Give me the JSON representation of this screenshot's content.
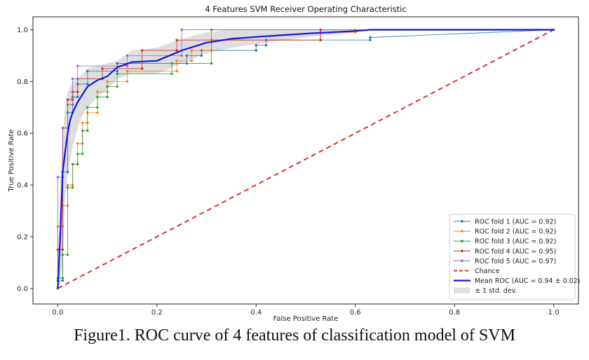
{
  "caption": "Figure1. ROC curve of 4 features of classification model of SVM",
  "chart_data": {
    "type": "line",
    "title": "4 Features SVM Receiver Operating Characteristic",
    "xlabel": "False Positive Rate",
    "ylabel": "True Positive Rate",
    "xlim": [
      -0.05,
      1.05
    ],
    "ylim": [
      -0.06,
      1.05
    ],
    "xticks": [
      0.0,
      0.2,
      0.4,
      0.6,
      0.8,
      1.0
    ],
    "yticks": [
      0.0,
      0.2,
      0.4,
      0.6,
      0.8,
      1.0
    ],
    "tick_labels_x": [
      "0.0",
      "0.2",
      "0.4",
      "0.6",
      "0.8",
      "1.0"
    ],
    "tick_labels_y": [
      "0.0",
      "0.2",
      "0.4",
      "0.6",
      "0.8",
      "1.0"
    ],
    "legend_position": "bottom-right",
    "series": [
      {
        "name": "ROC fold 1 (AUC = 0.92)",
        "color": "#1f77b4",
        "style": "line-dot",
        "x": [
          0,
          0,
          0.01,
          0.01,
          0.02,
          0.02,
          0.03,
          0.03,
          0.04,
          0.04,
          0.06,
          0.06,
          0.12,
          0.12,
          0.26,
          0.26,
          0.29,
          0.29,
          0.4,
          0.4,
          0.42,
          0.42,
          0.63,
          0.63,
          1.0
        ],
        "y": [
          0,
          0.03,
          0.03,
          0.45,
          0.45,
          0.68,
          0.68,
          0.74,
          0.74,
          0.79,
          0.79,
          0.84,
          0.84,
          0.87,
          0.87,
          0.9,
          0.9,
          0.92,
          0.92,
          0.94,
          0.94,
          0.96,
          0.96,
          0.97,
          1.0
        ]
      },
      {
        "name": "ROC fold 2 (AUC = 0.92)",
        "color": "#ff7f0e",
        "style": "line-dot",
        "x": [
          0,
          0,
          0.01,
          0.01,
          0.02,
          0.02,
          0.03,
          0.03,
          0.04,
          0.04,
          0.05,
          0.05,
          0.06,
          0.06,
          0.08,
          0.08,
          0.1,
          0.1,
          0.14,
          0.14,
          0.24,
          0.24,
          0.27,
          0.27,
          0.31,
          0.31,
          0.53,
          0.53,
          0.6,
          0.6,
          1.0
        ],
        "y": [
          0,
          0.24,
          0.24,
          0.32,
          0.32,
          0.4,
          0.4,
          0.48,
          0.48,
          0.56,
          0.56,
          0.64,
          0.64,
          0.68,
          0.68,
          0.76,
          0.76,
          0.8,
          0.8,
          0.84,
          0.84,
          0.88,
          0.88,
          0.92,
          0.92,
          0.96,
          0.96,
          0.99,
          0.99,
          1.0,
          1.0
        ]
      },
      {
        "name": "ROC fold 3 (AUC = 0.92)",
        "color": "#2ca02c",
        "style": "line-dot",
        "x": [
          0,
          0,
          0.01,
          0.01,
          0.02,
          0.02,
          0.03,
          0.03,
          0.04,
          0.04,
          0.05,
          0.05,
          0.06,
          0.06,
          0.08,
          0.08,
          0.1,
          0.1,
          0.12,
          0.12,
          0.23,
          0.23,
          0.31,
          0.31,
          1.0
        ],
        "y": [
          0,
          0.04,
          0.04,
          0.13,
          0.13,
          0.39,
          0.39,
          0.48,
          0.48,
          0.52,
          0.52,
          0.61,
          0.61,
          0.7,
          0.7,
          0.74,
          0.74,
          0.78,
          0.78,
          0.83,
          0.83,
          0.87,
          0.87,
          1.0,
          1.0
        ]
      },
      {
        "name": "ROC fold 4 (AUC = 0.95)",
        "color": "#d62728",
        "style": "line-dot",
        "x": [
          0,
          0,
          0.01,
          0.01,
          0.02,
          0.02,
          0.03,
          0.03,
          0.04,
          0.04,
          0.09,
          0.09,
          0.17,
          0.17,
          0.24,
          0.24,
          0.53,
          0.53,
          1.0
        ],
        "y": [
          0,
          0.15,
          0.15,
          0.62,
          0.62,
          0.73,
          0.73,
          0.76,
          0.76,
          0.81,
          0.81,
          0.85,
          0.85,
          0.92,
          0.92,
          0.96,
          0.96,
          1.0,
          1.0
        ]
      },
      {
        "name": "ROC fold 5 (AUC = 0.97)",
        "color": "#9467bd",
        "style": "line-dot",
        "x": [
          0,
          0,
          0.01,
          0.01,
          0.02,
          0.02,
          0.03,
          0.03,
          0.04,
          0.04,
          0.14,
          0.14,
          0.25,
          0.25,
          1.0
        ],
        "y": [
          0,
          0.43,
          0.43,
          0.62,
          0.62,
          0.71,
          0.71,
          0.81,
          0.81,
          0.86,
          0.86,
          0.9,
          0.9,
          1.0,
          1.0
        ]
      },
      {
        "name": "Chance",
        "color": "#e03030",
        "style": "dashed",
        "x": [
          0,
          1
        ],
        "y": [
          0,
          1
        ]
      },
      {
        "name": "Mean ROC (AUC = 0.94 ± 0.02)",
        "color": "#1515e0",
        "style": "thick",
        "x": [
          0,
          0.005,
          0.01,
          0.015,
          0.02,
          0.025,
          0.03,
          0.04,
          0.05,
          0.06,
          0.08,
          0.1,
          0.12,
          0.15,
          0.2,
          0.25,
          0.3,
          0.35,
          0.42,
          0.5,
          0.6,
          0.63,
          0.7,
          0.8,
          0.9,
          1.0
        ],
        "y": [
          0,
          0.2,
          0.45,
          0.53,
          0.6,
          0.65,
          0.68,
          0.72,
          0.75,
          0.78,
          0.805,
          0.82,
          0.855,
          0.875,
          0.88,
          0.92,
          0.95,
          0.965,
          0.975,
          0.985,
          0.995,
          1.0,
          1.0,
          1.0,
          1.0,
          1.0
        ]
      }
    ],
    "std_band": {
      "name": "± 1 std. dev.",
      "color": "#c8c8c8",
      "x": [
        0,
        0.005,
        0.01,
        0.015,
        0.02,
        0.03,
        0.04,
        0.05,
        0.06,
        0.08,
        0.1,
        0.12,
        0.15,
        0.2,
        0.25,
        0.3,
        0.35,
        0.42,
        0.5,
        0.6,
        0.63,
        1.0
      ],
      "upper": [
        0.06,
        0.4,
        0.6,
        0.7,
        0.76,
        0.8,
        0.81,
        0.83,
        0.85,
        0.86,
        0.87,
        0.88,
        0.92,
        0.93,
        0.965,
        0.99,
        1.0,
        1.0,
        1.0,
        1.0,
        1.0,
        1.0
      ],
      "lower": [
        0,
        0.02,
        0.1,
        0.35,
        0.44,
        0.55,
        0.62,
        0.67,
        0.7,
        0.74,
        0.77,
        0.81,
        0.83,
        0.83,
        0.87,
        0.91,
        0.93,
        0.95,
        0.97,
        0.99,
        1.0,
        1.0
      ]
    }
  }
}
